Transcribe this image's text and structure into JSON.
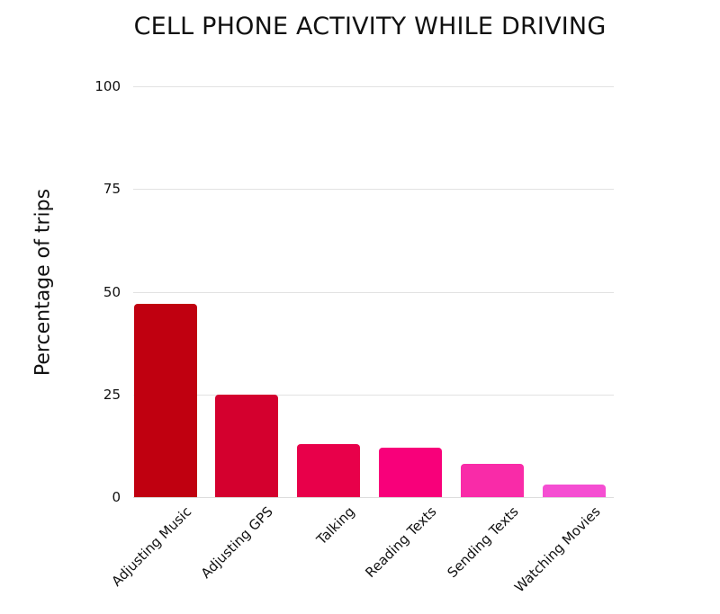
{
  "chart_data": {
    "type": "bar",
    "title": "CELL PHONE ACTIVITY WHILE DRIVING",
    "xlabel": "",
    "ylabel": "Percentage of trips",
    "ylim": [
      0,
      100
    ],
    "yticks": [
      0,
      25,
      50,
      75,
      100
    ],
    "grid": true,
    "legend": null,
    "categories": [
      "Adjusting Music",
      "Adjusting GPS",
      "Talking",
      "Reading Texts",
      "Sending Texts",
      "Watching Movies"
    ],
    "values": [
      47,
      25,
      13,
      12,
      8,
      3
    ],
    "colors": [
      "#c00010",
      "#d4002e",
      "#e8004a",
      "#f8007a",
      "#f92ba8",
      "#f54ed2"
    ]
  },
  "ticks": [
    "0",
    "25",
    "50",
    "75",
    "100"
  ]
}
